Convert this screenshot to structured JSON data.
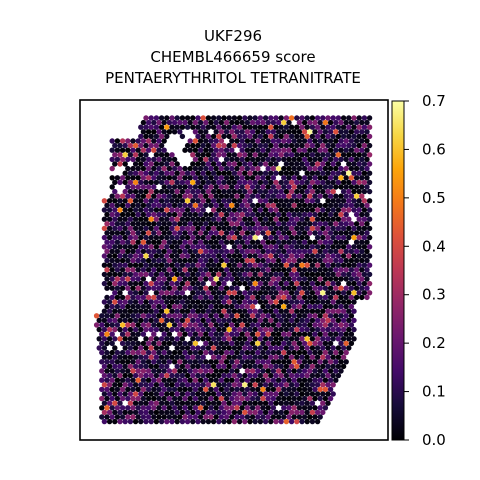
{
  "chart_data": {
    "type": "scatter",
    "title_lines": [
      "UKF296",
      "CHEMBL466659 score",
      "PENTAERYTHRITOL TETRANITRATE"
    ],
    "xlabel": "",
    "ylabel": "",
    "grid": false,
    "colormap": "inferno",
    "colorbar": {
      "range": [
        0.0,
        0.7
      ],
      "ticks": [
        "0.0",
        "0.1",
        "0.2",
        "0.3",
        "0.4",
        "0.5",
        "0.6",
        "0.7"
      ]
    },
    "spots": {
      "layout": "hexagonal spot grid (spatial transcriptomics tissue section)",
      "value_distribution": "mostly 0.0-0.15, scattered spots 0.2-0.45, rare spots up to 0.7",
      "rng_seed": 296
    }
  }
}
